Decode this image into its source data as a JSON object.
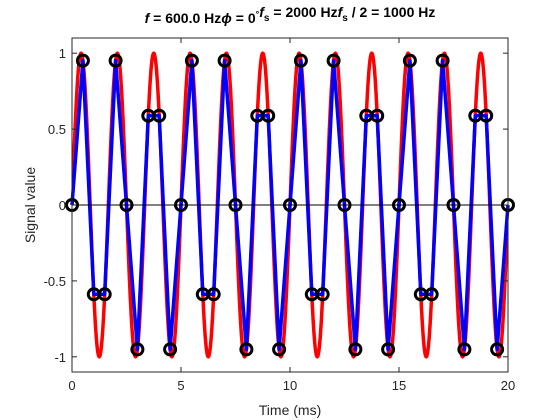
{
  "chart_data": {
    "type": "line",
    "title": {
      "f_symbol": "f",
      "f_value": " = 600.0 Hz",
      "phi_symbol": "ϕ",
      "phi_value": " = 0",
      "phi_unit": "°",
      "fs_symbol": "f",
      "fs_sub": "s",
      "fs_value": " = 2000 Hz",
      "nyq_symbol": "f",
      "nyq_sub": "s",
      "nyq_value": " / 2 = 1000 Hz"
    },
    "xlabel": "Time (ms)",
    "ylabel": "Signal value",
    "xlim": [
      0,
      20
    ],
    "ylim": [
      -1.1,
      1.1
    ],
    "xticks": [
      0,
      5,
      10,
      15,
      20
    ],
    "xtick_labels": [
      "0",
      "5",
      "10",
      "15",
      "20"
    ],
    "yticks": [
      -1,
      -0.5,
      0,
      0.5,
      1
    ],
    "ytick_labels": [
      "-1",
      "-0.5",
      "0",
      "0.5",
      "1"
    ],
    "grid": false,
    "zero_line": true,
    "series": [
      {
        "kind": "continuous",
        "frequency_hz": 600,
        "phase_deg": 0,
        "color": "#ff0000"
      },
      {
        "kind": "sampled",
        "sample_rate_hz": 2000,
        "color": "#0000ff",
        "marker_color": "#000000"
      }
    ],
    "samples": {
      "t_ms": [
        0,
        0.5,
        1,
        1.5,
        2,
        2.5,
        3,
        3.5,
        4,
        4.5,
        5,
        5.5,
        6,
        6.5,
        7,
        7.5,
        8,
        8.5,
        9,
        9.5,
        10,
        10.5,
        11,
        11.5,
        12,
        12.5,
        13,
        13.5,
        14,
        14.5,
        15,
        15.5,
        16,
        16.5,
        17,
        17.5,
        18,
        18.5,
        19,
        19.5,
        20
      ],
      "values": [
        0,
        0.951,
        -0.588,
        -0.588,
        0.951,
        0,
        -0.951,
        0.588,
        0.588,
        -0.951,
        0,
        0.951,
        -0.588,
        -0.588,
        0.951,
        0,
        -0.951,
        0.588,
        0.588,
        -0.951,
        0,
        0.951,
        -0.588,
        -0.588,
        0.951,
        0,
        -0.951,
        0.588,
        0.588,
        -0.951,
        0,
        0.951,
        -0.588,
        -0.588,
        0.951,
        0,
        -0.951,
        0.588,
        0.588,
        -0.951,
        0
      ]
    }
  }
}
